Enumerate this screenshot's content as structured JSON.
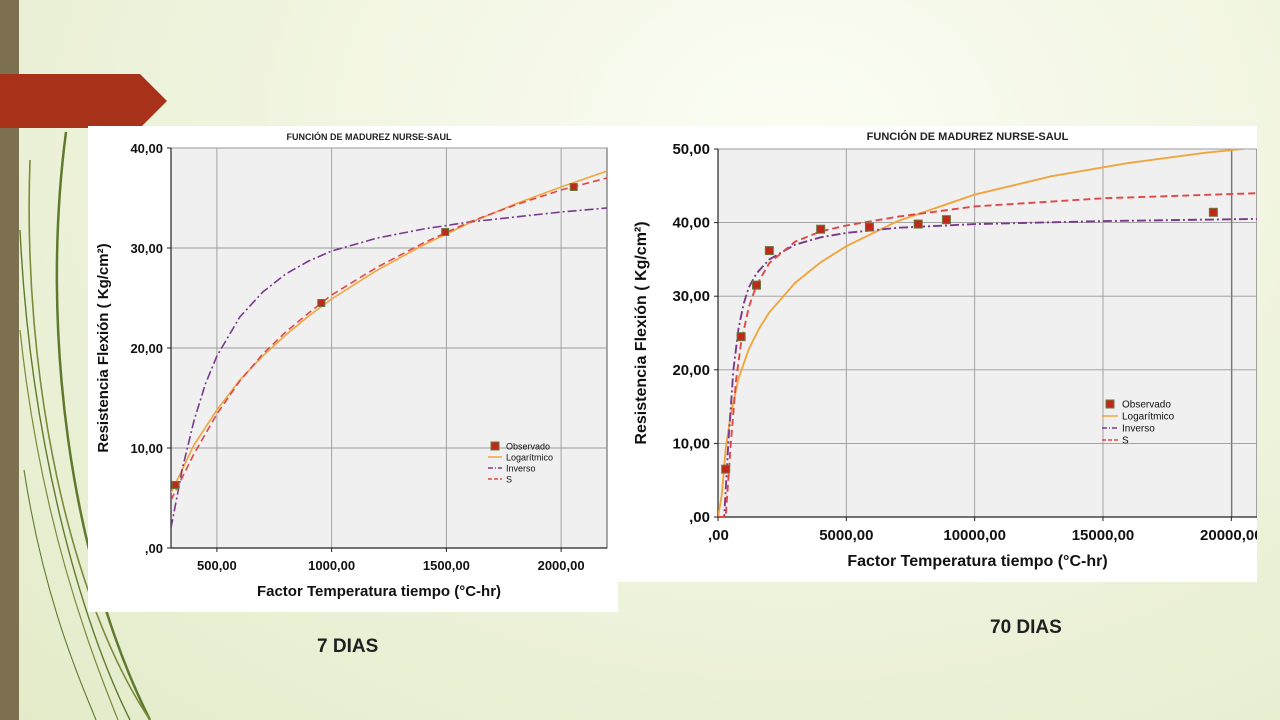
{
  "slide": {
    "captions": {
      "left": "7 DIAS",
      "right": "70 DIAS"
    },
    "colors": {
      "sidebar": "#7d7050",
      "ribbon": "#a8311a",
      "background": "#eef3dc"
    }
  },
  "chart_data": [
    {
      "type": "scatter",
      "title": "FUNCIÓN DE MADUREZ NURSE-SAUL",
      "xlabel": "Factor Temperatura tiempo (°C-hr)",
      "ylabel": "Resistencia Flexión ( Kg/cm²)",
      "xlim": [
        300,
        2200
      ],
      "ylim": [
        0,
        40
      ],
      "xticks": [
        500,
        1000,
        1500,
        2000
      ],
      "xtick_labels": [
        "500,00",
        "1000,00",
        "1500,00",
        "2000,00"
      ],
      "yticks": [
        0,
        10,
        20,
        30,
        40
      ],
      "ytick_labels": [
        ",00",
        "10,00",
        "20,00",
        "30,00",
        "40,00"
      ],
      "grid": true,
      "legend": {
        "position": "lower-right",
        "entries": [
          "Observado",
          "Logarítmico",
          "Inverso",
          "S"
        ]
      },
      "series": [
        {
          "name": "Observado",
          "kind": "points",
          "color": "#c0281c",
          "x": [
            320,
            955,
            1495,
            2055
          ],
          "y": [
            6.3,
            24.5,
            31.6,
            36.1
          ]
        },
        {
          "name": "Logarítmico",
          "kind": "line",
          "color": "#f0a640",
          "x": [
            300,
            400,
            500,
            600,
            700,
            800,
            900,
            1000,
            1200,
            1400,
            1600,
            1800,
            2000,
            2200
          ],
          "y": [
            5.5,
            10.3,
            13.8,
            16.8,
            19.2,
            21.3,
            23.2,
            24.9,
            27.8,
            30.3,
            32.5,
            34.4,
            36.1,
            37.7
          ]
        },
        {
          "name": "Inverso",
          "kind": "line",
          "color": "#7a3a8c",
          "x": [
            300,
            350,
            400,
            450,
            500,
            600,
            700,
            800,
            900,
            1000,
            1200,
            1400,
            1600,
            1800,
            2000,
            2200
          ],
          "y": [
            2.0,
            8.0,
            12.7,
            16.4,
            19.2,
            23.1,
            25.6,
            27.4,
            28.7,
            29.7,
            31.0,
            31.9,
            32.6,
            33.1,
            33.6,
            34.0
          ]
        },
        {
          "name": "S",
          "kind": "line",
          "color": "#e04848",
          "x": [
            300,
            400,
            500,
            600,
            700,
            800,
            900,
            1000,
            1200,
            1400,
            1600,
            1800,
            2000,
            2200
          ],
          "y": [
            4.8,
            9.4,
            13.4,
            16.7,
            19.4,
            21.6,
            23.5,
            25.3,
            28.1,
            30.5,
            32.6,
            34.3,
            35.8,
            37.0
          ]
        }
      ]
    },
    {
      "type": "scatter",
      "title": "FUNCIÓN DE MADUREZ NURSE-SAUL",
      "xlabel": "Factor Temperatura tiempo (°C-hr)",
      "ylabel": "Resistencia Flexión ( Kg/cm²)",
      "xlim": [
        0,
        21000
      ],
      "ylim": [
        0,
        50
      ],
      "xticks": [
        0,
        5000,
        10000,
        15000,
        20000
      ],
      "xtick_labels": [
        ",00",
        "5000,00",
        "10000,00",
        "15000,00",
        "20000,00"
      ],
      "yticks": [
        0,
        10,
        20,
        30,
        40,
        50
      ],
      "ytick_labels": [
        ",00",
        "10,00",
        "20,00",
        "30,00",
        "40,00",
        "50,00"
      ],
      "grid": true,
      "legend": {
        "position": "right",
        "entries": [
          "Observado",
          "Logarítmico",
          "Inverso",
          "S"
        ]
      },
      "series": [
        {
          "name": "Observado",
          "kind": "points",
          "color": "#c0281c",
          "x": [
            300,
            900,
            1500,
            2000,
            4000,
            5900,
            7800,
            8900,
            19300
          ],
          "y": [
            6.5,
            24.5,
            31.5,
            36.2,
            39.1,
            39.4,
            39.8,
            40.4,
            41.4
          ]
        },
        {
          "name": "Logarítmico",
          "kind": "line",
          "color": "#f0a640",
          "x": [
            0,
            150,
            300,
            500,
            800,
            1200,
            1600,
            2000,
            3000,
            4000,
            5000,
            7000,
            10000,
            13000,
            16000,
            19000,
            21000
          ],
          "y": [
            0,
            3.0,
            9.3,
            14.0,
            18.8,
            22.8,
            25.6,
            27.8,
            31.8,
            34.6,
            36.8,
            40.2,
            43.8,
            46.3,
            48.1,
            49.5,
            50.2
          ]
        },
        {
          "name": "Inverso",
          "kind": "line",
          "color": "#7a3a8c",
          "x": [
            0,
            240,
            400,
            600,
            800,
            1000,
            1200,
            1500,
            2000,
            3000,
            4000,
            5000,
            7000,
            10000,
            15000,
            21000
          ],
          "y": [
            0,
            0,
            10.0,
            20.0,
            25.6,
            29.0,
            31.2,
            33.1,
            35.0,
            37.0,
            38.0,
            38.6,
            39.3,
            39.8,
            40.2,
            40.5
          ]
        },
        {
          "name": "S",
          "kind": "line",
          "color": "#e04848",
          "x": [
            0,
            300,
            500,
            700,
            900,
            1200,
            1500,
            2000,
            3000,
            4000,
            5000,
            7000,
            10000,
            15000,
            21000
          ],
          "y": [
            0,
            0,
            10.0,
            18.5,
            23.7,
            28.5,
            31.5,
            34.5,
            37.4,
            38.8,
            39.6,
            40.8,
            42.2,
            43.3,
            44.0
          ]
        }
      ]
    }
  ]
}
